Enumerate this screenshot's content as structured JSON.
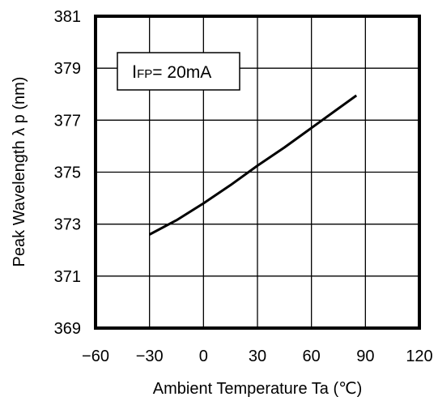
{
  "chart_data": {
    "type": "line",
    "xlabel": "Ambient Temperature Ta (℃)",
    "ylabel": "Peak Wavelength λ p (nm)",
    "xlim": [
      -60,
      120
    ],
    "ylim": [
      369,
      381
    ],
    "x_ticks": [
      -60,
      -30,
      0,
      30,
      60,
      90,
      120
    ],
    "y_ticks": [
      369,
      371,
      373,
      375,
      377,
      379,
      381
    ],
    "x_tick_labels": [
      "−60",
      "−30",
      "0",
      "30",
      "60",
      "90",
      "120"
    ],
    "y_tick_labels": [
      "369",
      "371",
      "373",
      "375",
      "377",
      "379",
      "381"
    ],
    "grid": true,
    "legend": null,
    "annotation": {
      "prefix": "I",
      "subscript": "FP",
      "text": "= 20mA"
    },
    "series": [
      {
        "x": [
          -30,
          -15,
          0,
          15,
          30,
          45,
          60,
          75,
          85
        ],
        "y": [
          372.6,
          373.15,
          373.8,
          374.5,
          375.25,
          375.95,
          376.7,
          377.45,
          377.95
        ]
      }
    ],
    "colors": {
      "line": "#000000",
      "grid": "#000000",
      "background": "#ffffff"
    }
  }
}
